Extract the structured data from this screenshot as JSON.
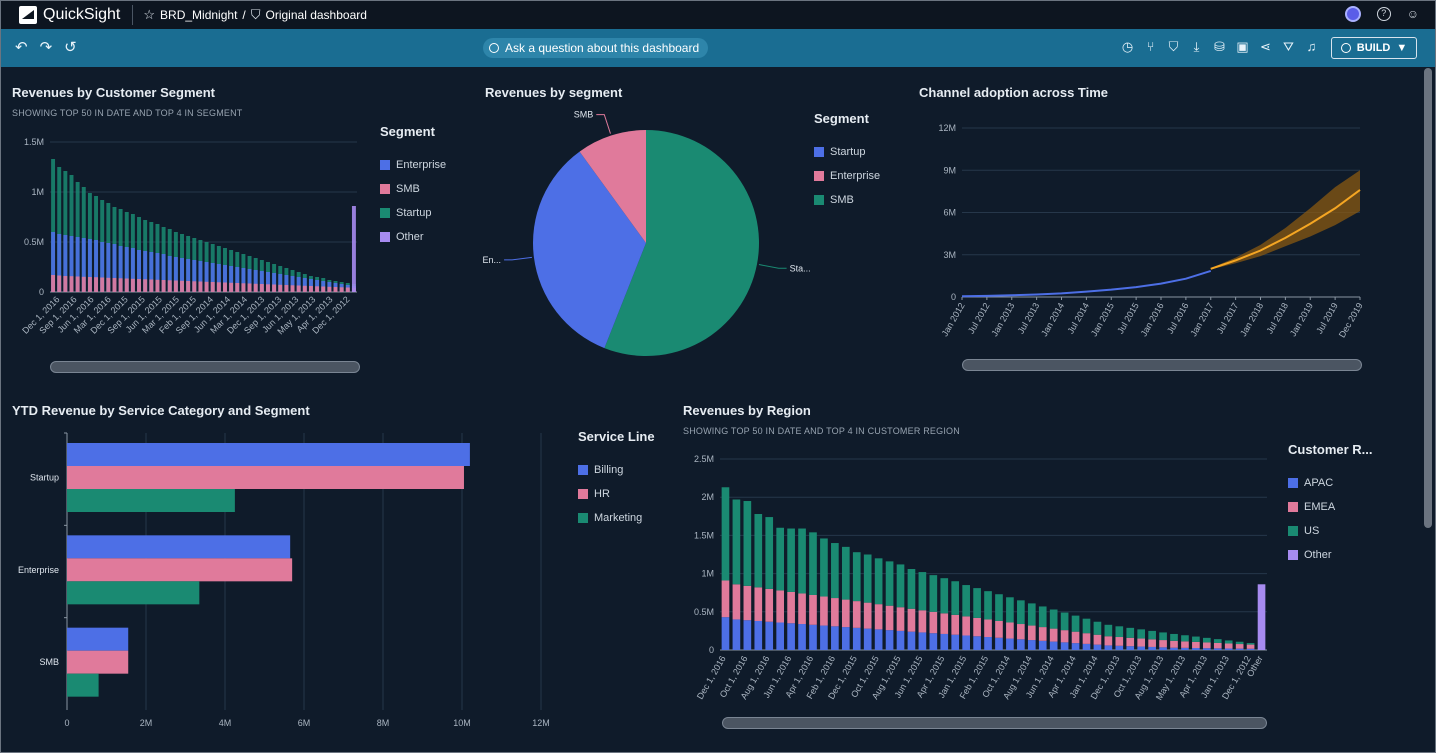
{
  "app": {
    "name": "QuickSight",
    "breadcrumb_theme": "BRD_Midnight",
    "breadcrumb_sep": "/",
    "breadcrumb_dashboard": "Original dashboard"
  },
  "topbar": {
    "help_icon": "?",
    "user_icon": "user-icon"
  },
  "toolbar": {
    "ask_label": "Ask a question about this dashboard",
    "build_label": "BUILD",
    "icons": [
      "undo-icon",
      "redo-icon",
      "reset-icon",
      "history-icon",
      "branch-icon",
      "bookmark-icon",
      "download-icon",
      "data-icon",
      "save-icon",
      "share-icon",
      "filter-icon",
      "alert-icon"
    ]
  },
  "colors": {
    "blue": "#4d6fe6",
    "pink": "#e07a9b",
    "green": "#1a8a72",
    "purple": "#a78bf0",
    "orange": "#f5a623",
    "toolbar": "#1a6d92",
    "bg": "#0f1b2a"
  },
  "panels": {
    "customer_segment": {
      "title": "Revenues by Customer Segment",
      "subtitle": "SHOWING TOP 50 IN DATE AND TOP 4 IN SEGMENT",
      "legend_title": "Segment",
      "legend": [
        "Enterprise",
        "SMB",
        "Startup",
        "Other"
      ]
    },
    "segment_pie": {
      "title": "Revenues by segment",
      "legend_title": "Segment",
      "legend": [
        "Startup",
        "Enterprise",
        "SMB"
      ]
    },
    "channel": {
      "title": "Channel adoption across Time"
    },
    "ytd": {
      "title": "YTD Revenue by Service Category and Segment",
      "legend_title": "Service Line",
      "legend": [
        "Billing",
        "HR",
        "Marketing"
      ]
    },
    "region": {
      "title": "Revenues by Region",
      "subtitle": "SHOWING TOP 50 IN DATE AND TOP 4 IN CUSTOMER REGION",
      "legend_title": "Customer R...",
      "legend": [
        "APAC",
        "EMEA",
        "US",
        "Other"
      ]
    }
  },
  "chart_data": [
    {
      "id": "customer_segment",
      "type": "bar",
      "title": "Revenues by Customer Segment",
      "ylim": [
        0,
        1500000
      ],
      "yticks": [
        "0",
        "0.5M",
        "1M",
        "1.5M"
      ],
      "xtick_labels": [
        "Dec 1, 2016",
        "Sep 1, 2016",
        "Jun 1, 2016",
        "Mar 1, 2016",
        "Dec 1, 2015",
        "Sep 1, 2015",
        "Jun 1, 2015",
        "Mar 1, 2015",
        "Feb 1, 2015",
        "Sep 1, 2014",
        "Jun 1, 2014",
        "Mar 1, 2014",
        "Dec 1, 2013",
        "Sep 1, 2013",
        "Jun 1, 2013",
        "May 1, 2013",
        "Apr 1, 2013",
        "Dec 1, 2012"
      ],
      "series": [
        {
          "name": "Enterprise",
          "values": [
            600000,
            580000,
            570000,
            560000,
            550000,
            540000,
            530000,
            520000,
            500000,
            490000,
            480000,
            460000,
            450000,
            440000,
            420000,
            410000,
            400000,
            390000,
            380000,
            360000,
            350000,
            340000,
            330000,
            320000,
            310000,
            300000,
            290000,
            280000,
            270000,
            260000,
            250000,
            240000,
            230000,
            220000,
            210000,
            200000,
            190000,
            180000,
            170000,
            160000,
            150000,
            140000,
            130000,
            120000,
            110000,
            100000,
            90000,
            80000,
            70000,
            60000
          ]
        },
        {
          "name": "SMB",
          "values": [
            170000,
            165000,
            160000,
            158000,
            155000,
            152000,
            150000,
            148000,
            145000,
            142000,
            140000,
            137000,
            135000,
            132000,
            130000,
            127000,
            125000,
            122000,
            120000,
            117000,
            115000,
            112000,
            110000,
            107000,
            105000,
            102000,
            100000,
            97000,
            95000,
            92000,
            90000,
            87000,
            85000,
            82000,
            80000,
            77000,
            75000,
            72000,
            70000,
            67000,
            65000,
            62000,
            60000,
            57000,
            55000,
            52000,
            50000,
            47000,
            45000,
            42000
          ]
        },
        {
          "name": "Startup",
          "values": [
            1330000,
            1250000,
            1210000,
            1170000,
            1100000,
            1050000,
            990000,
            960000,
            920000,
            890000,
            850000,
            830000,
            800000,
            780000,
            750000,
            720000,
            700000,
            680000,
            650000,
            630000,
            600000,
            580000,
            560000,
            540000,
            520000,
            500000,
            480000,
            460000,
            440000,
            420000,
            400000,
            380000,
            360000,
            340000,
            320000,
            300000,
            280000,
            260000,
            240000,
            220000,
            200000,
            180000,
            160000,
            150000,
            140000,
            120000,
            110000,
            100000,
            90000,
            80000
          ]
        },
        {
          "name": "Other",
          "values": [
            0,
            0,
            0,
            0,
            0,
            0,
            0,
            0,
            0,
            0,
            0,
            0,
            0,
            0,
            0,
            0,
            0,
            0,
            0,
            0,
            0,
            0,
            0,
            0,
            0,
            0,
            0,
            0,
            0,
            0,
            0,
            0,
            0,
            0,
            0,
            0,
            0,
            0,
            0,
            0,
            0,
            0,
            0,
            0,
            0,
            0,
            0,
            0,
            0,
            860000
          ]
        }
      ]
    },
    {
      "id": "segment_pie",
      "type": "pie",
      "title": "Revenues by segment",
      "categories": [
        "Startup",
        "Enterprise",
        "SMB"
      ],
      "values": [
        56,
        34,
        10
      ],
      "slice_labels": [
        "Sta...",
        "En...",
        "SMB"
      ]
    },
    {
      "id": "channel",
      "type": "line",
      "title": "Channel adoption across Time",
      "ylim": [
        0,
        12000000
      ],
      "yticks": [
        "0",
        "3M",
        "6M",
        "9M",
        "12M"
      ],
      "x": [
        "Jan 2012",
        "Jul 2012",
        "Jan 2013",
        "Jul 2013",
        "Jan 2014",
        "Jul 2014",
        "Jan 2015",
        "Jul 2015",
        "Jan 2016",
        "Jul 2016",
        "Jan 2017",
        "Jul 2017",
        "Jan 2018",
        "Jul 2018",
        "Jan 2019",
        "Jul 2019",
        "Dec 2019"
      ],
      "series": [
        {
          "name": "Actual",
          "values": [
            50000,
            80000,
            120000,
            180000,
            260000,
            380000,
            520000,
            700000,
            950000,
            1300000,
            1850000,
            null,
            null,
            null,
            null,
            null,
            null
          ]
        },
        {
          "name": "Forecast",
          "values": [
            null,
            null,
            null,
            null,
            null,
            null,
            null,
            null,
            null,
            null,
            2000000,
            2600000,
            3300000,
            4200000,
            5200000,
            6300000,
            7600000
          ]
        },
        {
          "name": "Forecast upper",
          "values": [
            null,
            null,
            null,
            null,
            null,
            null,
            null,
            null,
            null,
            null,
            2050000,
            2800000,
            3700000,
            4900000,
            6300000,
            7800000,
            9000000
          ]
        },
        {
          "name": "Forecast lower",
          "values": [
            null,
            null,
            null,
            null,
            null,
            null,
            null,
            null,
            null,
            null,
            1950000,
            2400000,
            2900000,
            3600000,
            4300000,
            5100000,
            6100000
          ]
        }
      ]
    },
    {
      "id": "ytd",
      "type": "bar",
      "orientation": "horizontal",
      "title": "YTD Revenue by Service Category and Segment",
      "categories": [
        "Startup",
        "Enterprise",
        "SMB"
      ],
      "xlim": [
        0,
        12000000
      ],
      "xticks": [
        "0",
        "2M",
        "4M",
        "6M",
        "8M",
        "10M",
        "12M"
      ],
      "series": [
        {
          "name": "Billing",
          "values": [
            10200000,
            5650000,
            1550000
          ]
        },
        {
          "name": "HR",
          "values": [
            10050000,
            5700000,
            1550000
          ]
        },
        {
          "name": "Marketing",
          "values": [
            4250000,
            3350000,
            800000
          ]
        }
      ]
    },
    {
      "id": "region",
      "type": "bar",
      "stacked": true,
      "title": "Revenues by Region",
      "ylim": [
        0,
        2500000
      ],
      "yticks": [
        "0",
        "0.5M",
        "1M",
        "1.5M",
        "2M",
        "2.5M"
      ],
      "xtick_labels": [
        "Dec 1, 2016",
        "Oct 1, 2016",
        "Aug 1, 2016",
        "Jun 1, 2016",
        "Apr 1, 2016",
        "Feb 1, 2016",
        "Dec 1, 2015",
        "Oct 1, 2015",
        "Aug 1, 2015",
        "Jun 1, 2015",
        "Apr 1, 2015",
        "Jan 1, 2015",
        "Feb 1, 2015",
        "Oct 1, 2014",
        "Aug 1, 2014",
        "Jun 1, 2014",
        "Apr 1, 2014",
        "Jan 1, 2014",
        "Dec 1, 2013",
        "Oct 1, 2013",
        "Aug 1, 2013",
        "May 1, 2013",
        "Apr 1, 2013",
        "Jan 1, 2013",
        "Dec 1, 2012",
        "Other"
      ],
      "series": [
        {
          "name": "APAC",
          "values": [
            430000,
            400000,
            390000,
            380000,
            370000,
            360000,
            350000,
            340000,
            330000,
            320000,
            310000,
            300000,
            290000,
            280000,
            270000,
            260000,
            250000,
            240000,
            230000,
            220000,
            210000,
            200000,
            190000,
            180000,
            170000,
            160000,
            150000,
            140000,
            130000,
            120000,
            110000,
            100000,
            90000,
            80000,
            70000,
            60000,
            55000,
            50000,
            45000,
            40000,
            35000,
            30000,
            28000,
            26000,
            24000,
            22000,
            20000,
            18000,
            16000,
            0
          ]
        },
        {
          "name": "EMEA",
          "values": [
            480000,
            460000,
            450000,
            440000,
            430000,
            420000,
            410000,
            400000,
            390000,
            380000,
            370000,
            360000,
            350000,
            340000,
            330000,
            320000,
            310000,
            300000,
            290000,
            280000,
            270000,
            260000,
            250000,
            240000,
            230000,
            220000,
            210000,
            200000,
            190000,
            180000,
            170000,
            160000,
            150000,
            140000,
            130000,
            120000,
            115000,
            110000,
            105000,
            100000,
            95000,
            90000,
            85000,
            80000,
            75000,
            70000,
            65000,
            60000,
            55000,
            0
          ]
        },
        {
          "name": "US",
          "values": [
            1220000,
            1110000,
            1110000,
            960000,
            940000,
            820000,
            830000,
            850000,
            820000,
            760000,
            720000,
            690000,
            640000,
            630000,
            600000,
            580000,
            560000,
            520000,
            500000,
            480000,
            460000,
            440000,
            410000,
            390000,
            370000,
            350000,
            330000,
            310000,
            290000,
            270000,
            250000,
            230000,
            210000,
            190000,
            170000,
            150000,
            140000,
            130000,
            120000,
            110000,
            100000,
            90000,
            80000,
            70000,
            60000,
            50000,
            40000,
            30000,
            20000,
            0
          ]
        },
        {
          "name": "Other",
          "values": [
            0,
            0,
            0,
            0,
            0,
            0,
            0,
            0,
            0,
            0,
            0,
            0,
            0,
            0,
            0,
            0,
            0,
            0,
            0,
            0,
            0,
            0,
            0,
            0,
            0,
            0,
            0,
            0,
            0,
            0,
            0,
            0,
            0,
            0,
            0,
            0,
            0,
            0,
            0,
            0,
            0,
            0,
            0,
            0,
            0,
            0,
            0,
            0,
            0,
            860000
          ]
        }
      ]
    }
  ]
}
